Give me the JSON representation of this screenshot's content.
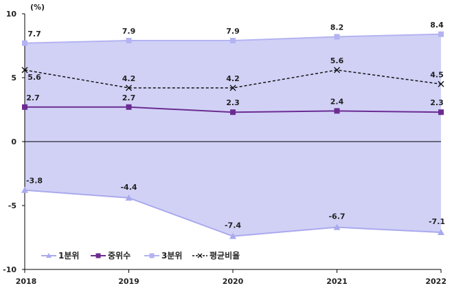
{
  "chart_data": {
    "type": "line",
    "unit_label": "(%)",
    "x": [
      "2018",
      "2019",
      "2020",
      "2021",
      "2022"
    ],
    "ylim": [
      -10,
      10
    ],
    "yticks": [
      "10",
      "5",
      "0",
      "-5",
      "-10"
    ],
    "legend_position": "bottom-left",
    "shaded_band": "between 1분위 and 3분위",
    "series": [
      {
        "name": "1분위",
        "values": [
          -3.8,
          -4.4,
          -7.4,
          -6.7,
          -7.1
        ],
        "labels": [
          "-3.8",
          "-4.4",
          "-7.4",
          "-6.7",
          "-7.1"
        ],
        "color": "#a9a9ee",
        "marker": "triangle"
      },
      {
        "name": "중위수",
        "values": [
          2.7,
          2.7,
          2.3,
          2.4,
          2.3
        ],
        "labels": [
          "2.7",
          "2.7",
          "2.3",
          "2.4",
          "2.3"
        ],
        "color": "#6a2c91",
        "marker": "square"
      },
      {
        "name": "3분위",
        "values": [
          7.7,
          7.9,
          7.9,
          8.2,
          8.4
        ],
        "labels": [
          "7.7",
          "7.9",
          "7.9",
          "8.2",
          "8.4"
        ],
        "color": "#b3b3f2",
        "marker": "square"
      },
      {
        "name": "평균비율",
        "values": [
          5.6,
          4.2,
          4.2,
          5.6,
          4.5
        ],
        "labels": [
          "5.6",
          "4.2",
          "4.2",
          "5.6",
          "4.5"
        ],
        "color": "#111111",
        "marker": "x",
        "dashed": true
      }
    ]
  },
  "colors": {
    "band_fill": "#c9c9f5",
    "axis": "#000000"
  }
}
